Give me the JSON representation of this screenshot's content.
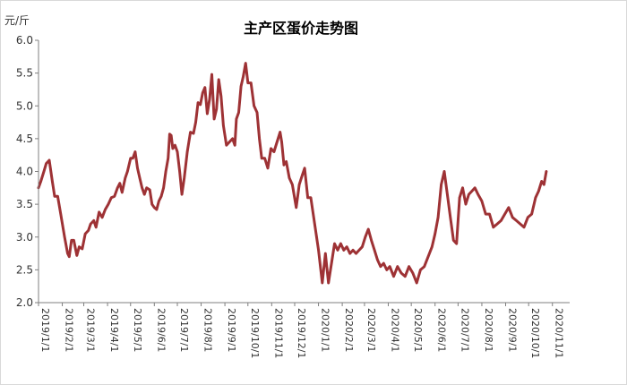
{
  "chart_data": {
    "type": "line",
    "title": "主产区蛋价走势图",
    "y_unit": "元/斤",
    "ylim": [
      2.0,
      6.0
    ],
    "yticks": [
      "2.0",
      "2.5",
      "3.0",
      "3.5",
      "4.0",
      "4.5",
      "5.0",
      "5.5",
      "6.0"
    ],
    "xlim": [
      "2019/1/1",
      "2020/11/20"
    ],
    "xticks": [
      "2019/1/1",
      "2019/2/1",
      "2019/3/1",
      "2019/4/1",
      "2019/5/1",
      "2019/6/1",
      "2019/7/1",
      "2019/8/1",
      "2019/9/1",
      "2019/10/1",
      "2019/11/1",
      "2019/12/1",
      "2020/1/1",
      "2020/2/1",
      "2020/3/1",
      "2020/4/1",
      "2020/5/1",
      "2020/6/1",
      "2020/7/1",
      "2020/8/1",
      "2020/9/1",
      "2020/10/1",
      "2020/11/1"
    ],
    "grid": false,
    "legend": "none",
    "series": [
      {
        "color": "#9e3235",
        "points": [
          [
            "2019/1/1",
            3.75
          ],
          [
            "2019/1/4",
            3.85
          ],
          [
            "2019/1/8",
            4.0
          ],
          [
            "2019/1/11",
            4.12
          ],
          [
            "2019/1/15",
            4.17
          ],
          [
            "2019/1/19",
            3.85
          ],
          [
            "2019/1/22",
            3.62
          ],
          [
            "2019/1/26",
            3.62
          ],
          [
            "2019/1/30",
            3.35
          ],
          [
            "2019/2/4",
            3.0
          ],
          [
            "2019/2/8",
            2.75
          ],
          [
            "2019/2/10",
            2.7
          ],
          [
            "2019/2/13",
            2.95
          ],
          [
            "2019/2/16",
            2.95
          ],
          [
            "2019/2/20",
            2.72
          ],
          [
            "2019/2/23",
            2.85
          ],
          [
            "2019/2/27",
            2.82
          ],
          [
            "2019/3/3",
            3.05
          ],
          [
            "2019/3/7",
            3.1
          ],
          [
            "2019/3/10",
            3.2
          ],
          [
            "2019/3/14",
            3.25
          ],
          [
            "2019/3/17",
            3.15
          ],
          [
            "2019/3/21",
            3.38
          ],
          [
            "2019/3/25",
            3.3
          ],
          [
            "2019/3/29",
            3.42
          ],
          [
            "2019/4/2",
            3.5
          ],
          [
            "2019/4/6",
            3.6
          ],
          [
            "2019/4/10",
            3.62
          ],
          [
            "2019/4/14",
            3.75
          ],
          [
            "2019/4/17",
            3.82
          ],
          [
            "2019/4/20",
            3.68
          ],
          [
            "2019/4/24",
            3.9
          ],
          [
            "2019/4/27",
            4.0
          ],
          [
            "2019/5/1",
            4.2
          ],
          [
            "2019/5/4",
            4.2
          ],
          [
            "2019/5/7",
            4.3
          ],
          [
            "2019/5/10",
            4.05
          ],
          [
            "2019/5/13",
            3.9
          ],
          [
            "2019/5/16",
            3.75
          ],
          [
            "2019/5/19",
            3.65
          ],
          [
            "2019/5/22",
            3.75
          ],
          [
            "2019/5/26",
            3.72
          ],
          [
            "2019/5/29",
            3.5
          ],
          [
            "2019/6/1",
            3.45
          ],
          [
            "2019/6/4",
            3.42
          ],
          [
            "2019/6/7",
            3.55
          ],
          [
            "2019/6/10",
            3.62
          ],
          [
            "2019/6/13",
            3.75
          ],
          [
            "2019/6/16",
            4.0
          ],
          [
            "2019/6/19",
            4.2
          ],
          [
            "2019/6/21",
            4.57
          ],
          [
            "2019/6/23",
            4.55
          ],
          [
            "2019/6/25",
            4.35
          ],
          [
            "2019/6/28",
            4.4
          ],
          [
            "2019/7/1",
            4.3
          ],
          [
            "2019/7/4",
            4.0
          ],
          [
            "2019/7/7",
            3.65
          ],
          [
            "2019/7/10",
            3.9
          ],
          [
            "2019/7/14",
            4.3
          ],
          [
            "2019/7/18",
            4.6
          ],
          [
            "2019/7/22",
            4.58
          ],
          [
            "2019/7/25",
            4.75
          ],
          [
            "2019/7/28",
            5.05
          ],
          [
            "2019/7/31",
            5.02
          ],
          [
            "2019/8/3",
            5.2
          ],
          [
            "2019/8/6",
            5.28
          ],
          [
            "2019/8/9",
            4.88
          ],
          [
            "2019/8/12",
            5.1
          ],
          [
            "2019/8/15",
            5.48
          ],
          [
            "2019/8/18",
            4.8
          ],
          [
            "2019/8/21",
            4.95
          ],
          [
            "2019/8/24",
            5.4
          ],
          [
            "2019/8/27",
            5.15
          ],
          [
            "2019/8/30",
            4.7
          ],
          [
            "2019/9/3",
            4.4
          ],
          [
            "2019/9/7",
            4.45
          ],
          [
            "2019/9/11",
            4.5
          ],
          [
            "2019/9/14",
            4.4
          ],
          [
            "2019/9/16",
            4.8
          ],
          [
            "2019/9/19",
            4.9
          ],
          [
            "2019/9/22",
            5.3
          ],
          [
            "2019/9/25",
            5.45
          ],
          [
            "2019/9/28",
            5.65
          ],
          [
            "2019/10/1",
            5.35
          ],
          [
            "2019/10/5",
            5.35
          ],
          [
            "2019/10/9",
            5.0
          ],
          [
            "2019/10/13",
            4.9
          ],
          [
            "2019/10/16",
            4.5
          ],
          [
            "2019/10/19",
            4.2
          ],
          [
            "2019/10/23",
            4.2
          ],
          [
            "2019/10/27",
            4.05
          ],
          [
            "2019/10/31",
            4.35
          ],
          [
            "2019/11/4",
            4.3
          ],
          [
            "2019/11/8",
            4.45
          ],
          [
            "2019/11/12",
            4.6
          ],
          [
            "2019/11/14",
            4.45
          ],
          [
            "2019/11/17",
            4.1
          ],
          [
            "2019/11/20",
            4.15
          ],
          [
            "2019/11/24",
            3.9
          ],
          [
            "2019/11/28",
            3.8
          ],
          [
            "2019/12/3",
            3.45
          ],
          [
            "2019/12/7",
            3.8
          ],
          [
            "2019/12/11",
            3.95
          ],
          [
            "2019/12/14",
            4.05
          ],
          [
            "2019/12/18",
            3.6
          ],
          [
            "2019/12/22",
            3.6
          ],
          [
            "2019/12/27",
            3.2
          ],
          [
            "2020/1/1",
            2.8
          ],
          [
            "2020/1/6",
            2.3
          ],
          [
            "2020/1/10",
            2.75
          ],
          [
            "2020/1/14",
            2.3
          ],
          [
            "2020/1/18",
            2.6
          ],
          [
            "2020/1/22",
            2.9
          ],
          [
            "2020/1/26",
            2.8
          ],
          [
            "2020/1/30",
            2.9
          ],
          [
            "2020/2/3",
            2.8
          ],
          [
            "2020/2/7",
            2.85
          ],
          [
            "2020/2/11",
            2.75
          ],
          [
            "2020/2/15",
            2.8
          ],
          [
            "2020/2/19",
            2.75
          ],
          [
            "2020/2/23",
            2.8
          ],
          [
            "2020/2/27",
            2.85
          ],
          [
            "2020/3/2",
            3.0
          ],
          [
            "2020/3/6",
            3.12
          ],
          [
            "2020/3/10",
            2.95
          ],
          [
            "2020/3/14",
            2.8
          ],
          [
            "2020/3/18",
            2.65
          ],
          [
            "2020/3/22",
            2.55
          ],
          [
            "2020/3/26",
            2.6
          ],
          [
            "2020/3/30",
            2.5
          ],
          [
            "2020/4/3",
            2.55
          ],
          [
            "2020/4/8",
            2.4
          ],
          [
            "2020/4/13",
            2.55
          ],
          [
            "2020/4/18",
            2.45
          ],
          [
            "2020/4/23",
            2.4
          ],
          [
            "2020/4/28",
            2.55
          ],
          [
            "2020/5/3",
            2.45
          ],
          [
            "2020/5/8",
            2.3
          ],
          [
            "2020/5/13",
            2.5
          ],
          [
            "2020/5/18",
            2.55
          ],
          [
            "2020/5/23",
            2.7
          ],
          [
            "2020/5/28",
            2.85
          ],
          [
            "2020/6/1",
            3.05
          ],
          [
            "2020/6/5",
            3.3
          ],
          [
            "2020/6/9",
            3.8
          ],
          [
            "2020/6/13",
            4.0
          ],
          [
            "2020/6/17",
            3.65
          ],
          [
            "2020/6/21",
            3.3
          ],
          [
            "2020/6/25",
            2.95
          ],
          [
            "2020/6/29",
            2.9
          ],
          [
            "2020/7/3",
            3.6
          ],
          [
            "2020/7/7",
            3.75
          ],
          [
            "2020/7/11",
            3.5
          ],
          [
            "2020/7/15",
            3.65
          ],
          [
            "2020/7/19",
            3.7
          ],
          [
            "2020/7/23",
            3.75
          ],
          [
            "2020/7/27",
            3.65
          ],
          [
            "2020/8/1",
            3.55
          ],
          [
            "2020/8/6",
            3.35
          ],
          [
            "2020/8/11",
            3.35
          ],
          [
            "2020/8/16",
            3.15
          ],
          [
            "2020/8/21",
            3.2
          ],
          [
            "2020/8/26",
            3.25
          ],
          [
            "2020/8/31",
            3.35
          ],
          [
            "2020/9/5",
            3.45
          ],
          [
            "2020/9/10",
            3.3
          ],
          [
            "2020/9/15",
            3.25
          ],
          [
            "2020/9/20",
            3.2
          ],
          [
            "2020/9/25",
            3.15
          ],
          [
            "2020/9/30",
            3.3
          ],
          [
            "2020/10/5",
            3.35
          ],
          [
            "2020/10/10",
            3.6
          ],
          [
            "2020/10/14",
            3.7
          ],
          [
            "2020/10/18",
            3.85
          ],
          [
            "2020/10/21",
            3.8
          ],
          [
            "2020/10/24",
            4.0
          ]
        ]
      }
    ]
  }
}
